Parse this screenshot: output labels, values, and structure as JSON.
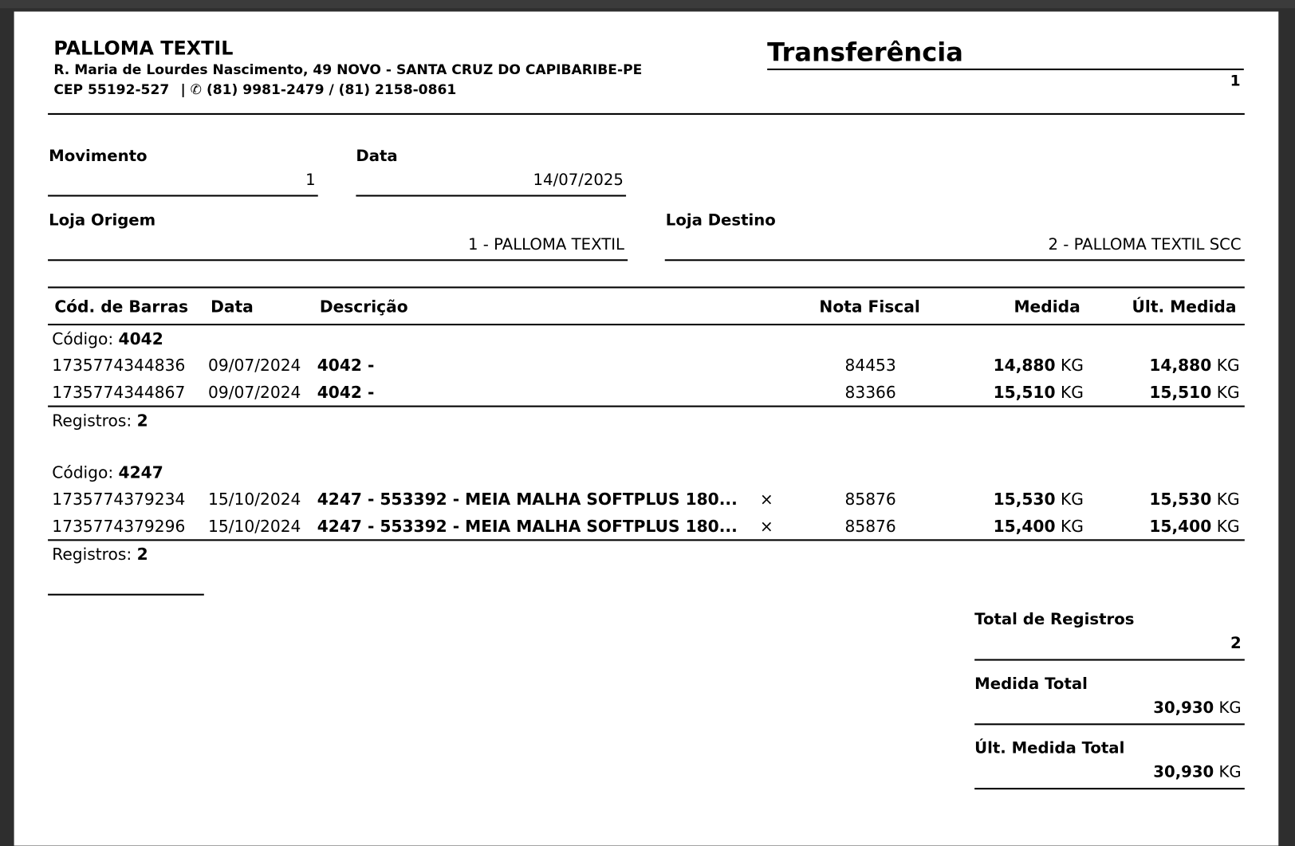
{
  "company": {
    "name": "PALLOMA TEXTIL",
    "address": "R. Maria de Lourdes Nascimento, 49 NOVO - SANTA CRUZ DO CAPIBARIBE-PE",
    "cep": "CEP 55192-527",
    "separator": "|",
    "phone_icon": "phone-icon",
    "phone_glyph": "✆",
    "phones": "(81) 9981-2479 / (81) 2158-0861"
  },
  "doc": {
    "title": "Transferência",
    "page": "1"
  },
  "fields": {
    "movimento_label": "Movimento",
    "movimento": "1",
    "data_label": "Data",
    "data": "14/07/2025",
    "origem_label": "Loja Origem",
    "origem": "1 - PALLOMA TEXTIL",
    "destino_label": "Loja Destino",
    "destino": "2 - PALLOMA TEXTIL SCC"
  },
  "table": {
    "headers": [
      "Cód. de Barras",
      "Data",
      "Descrição",
      "Nota Fiscal",
      "Medida",
      "Últ. Medida"
    ],
    "codigo_label": "Código:",
    "registros_label": "Registros:",
    "unit": "KG",
    "groups": [
      {
        "codigo": "4042",
        "registros": "2",
        "rows": [
          {
            "barcode": "1735774344836",
            "date": "09/07/2024",
            "desc": "4042 -",
            "mark": "",
            "nf": "84453",
            "medida": "14,880",
            "ult": "14,880"
          },
          {
            "barcode": "1735774344867",
            "date": "09/07/2024",
            "desc": "4042 -",
            "mark": "",
            "nf": "83366",
            "medida": "15,510",
            "ult": "15,510"
          }
        ]
      },
      {
        "codigo": "4247",
        "registros": "2",
        "rows": [
          {
            "barcode": "1735774379234",
            "date": "15/10/2024",
            "desc": "4247 - 553392 - MEIA MALHA SOFTPLUS 180...",
            "mark": "×",
            "nf": "85876",
            "medida": "15,530",
            "ult": "15,530"
          },
          {
            "barcode": "1735774379296",
            "date": "15/10/2024",
            "desc": "4247 - 553392 - MEIA MALHA SOFTPLUS 180...",
            "mark": "×",
            "nf": "85876",
            "medida": "15,400",
            "ult": "15,400"
          }
        ]
      }
    ]
  },
  "totals": {
    "registros_label": "Total de Registros",
    "registros": "2",
    "medida_label": "Medida Total",
    "medida": "30,930",
    "ult_label": "Últ. Medida Total",
    "ult": "30,930",
    "unit": "KG"
  }
}
